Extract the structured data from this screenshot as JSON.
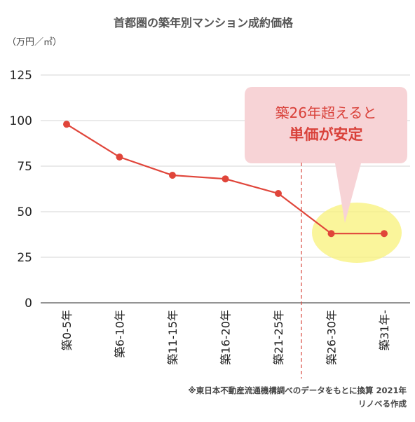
{
  "chart_data": {
    "type": "line",
    "title": "首都圏の築年別マンション成約価格",
    "unit_label": "（万円／㎡）",
    "ylim": [
      0,
      125
    ],
    "yticks": [
      0,
      25,
      50,
      75,
      100,
      125
    ],
    "grid": true,
    "categories": [
      "築0-5年",
      "築6-10年",
      "築11-15年",
      "築16-20年",
      "築21-25年",
      "築26-30年",
      "築31年-"
    ],
    "values": [
      98,
      80,
      70,
      68,
      60,
      38,
      38
    ],
    "annotation": {
      "line1": "築26年超えると",
      "line2": "単価が安定"
    },
    "source_note": "※東日本不動産流通機構調べのデータをもとに換算 2021年",
    "author_note": "リノベる作成",
    "colors": {
      "line": "#e0453a",
      "callout_bg": "#f7d3d6",
      "callout_text": "#d9413a",
      "highlight": "#f8f27a",
      "divider": "#d84a40",
      "grid": "#d6d6d6"
    }
  }
}
